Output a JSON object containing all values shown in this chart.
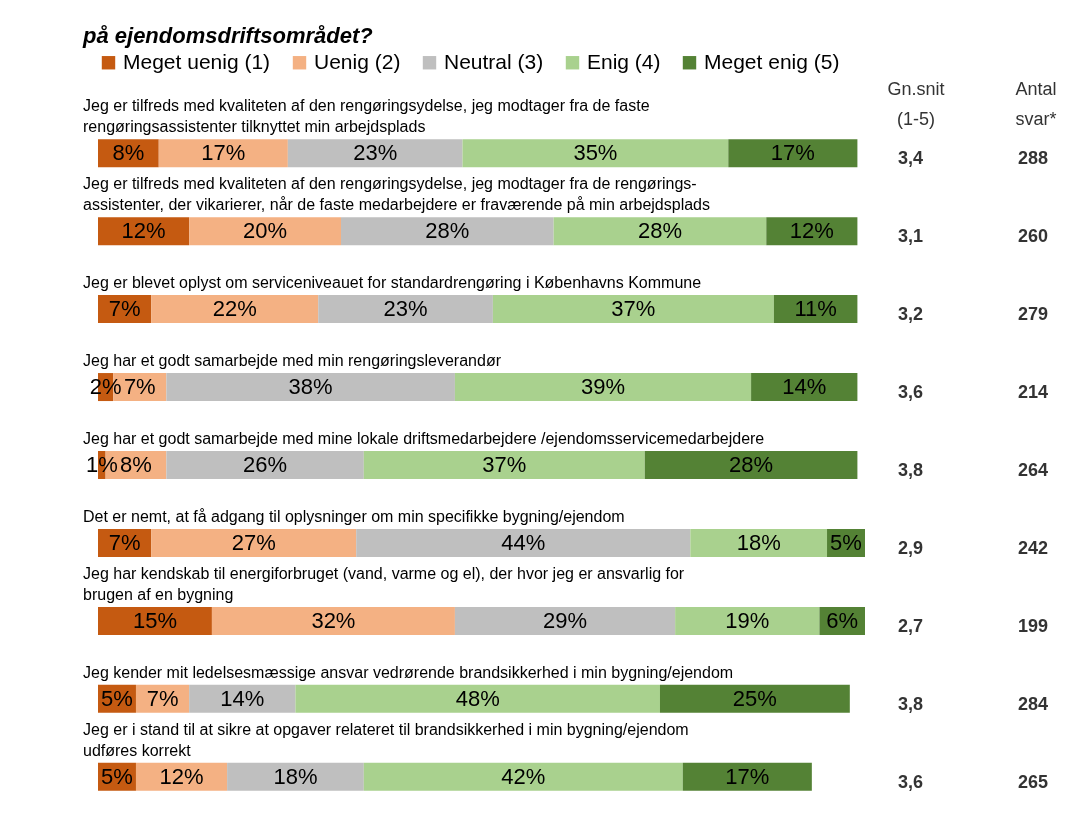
{
  "chart_data": {
    "type": "bar",
    "orientation": "horizontal",
    "stacked": true,
    "legend": "top",
    "xlim": [
      0,
      101
    ],
    "tick_labels": false,
    "title": "på ejendomsdriftsområdet?",
    "categories": [
      "Jeg er tilfreds med kvaliteten af den rengøringsydelse, jeg modtager fra de faste rengøringsassistenter tilknyttet min arbejdsplads",
      "Jeg er tilfreds med kvaliteten af den rengøringsydelse, jeg modtager fra de rengørings-assistenter, der vikarierer, når de faste medarbejdere er fraværende på min arbejdsplads",
      "Jeg er blevet oplyst om serviceniveauet for standardrengøring i Københavns Kommune",
      "Jeg har et godt samarbejde med min rengøringsleverandør",
      "Jeg har et godt samarbejde med mine lokale driftsmedarbejdere /ejendomsservicemedarbejdere",
      "Det er nemt, at få adgang til oplysninger om min specifikke bygning/ejendom",
      "Jeg har kendskab til energiforbruget (vand, varme og el), der hvor jeg er ansvarlig for brugen af en bygning",
      "Jeg kender mit ledelsesmæssige ansvar vedrørende brandsikkerhed i min bygning/ejendom",
      "Jeg er i stand til at sikre at opgaver relateret til brandsikkerhed i min bygning/ejendom udføres korrekt"
    ],
    "series": [
      {
        "name": "Meget uenig (1)",
        "color": "#c55a11",
        "values": [
          8,
          12,
          7,
          2,
          1,
          7,
          15,
          5,
          5
        ],
        "value_labels": [
          "8%",
          "12%",
          "7%",
          "2%",
          "1%",
          "7%",
          "15%",
          "5%",
          "5%"
        ]
      },
      {
        "name": "Uenig (2)",
        "color": "#f4b183",
        "values": [
          17,
          20,
          22,
          7,
          8,
          27,
          32,
          7,
          12
        ],
        "value_labels": [
          "17%",
          "20%",
          "22%",
          "7%",
          "8%",
          "27%",
          "32%",
          "7%",
          "12%"
        ]
      },
      {
        "name": "Neutral (3)",
        "color": "#bfbfbf",
        "values": [
          23,
          28,
          23,
          38,
          26,
          44,
          29,
          14,
          18
        ],
        "value_labels": [
          "23%",
          "28%",
          "23%",
          "38%",
          "26%",
          "44%",
          "29%",
          "14%",
          "18%"
        ]
      },
      {
        "name": "Enig (4)",
        "color": "#a9d18e",
        "values": [
          35,
          28,
          37,
          39,
          37,
          18,
          19,
          48,
          42
        ],
        "value_labels": [
          "35%",
          "28%",
          "37%",
          "39%",
          "37%",
          "18%",
          "19%",
          "48%",
          "42%"
        ]
      },
      {
        "name": "Meget enig (5)",
        "color": "#548235",
        "values": [
          17,
          12,
          11,
          14,
          28,
          5,
          6,
          25,
          17
        ],
        "value_labels": [
          "17%",
          "12%",
          "11%",
          "14%",
          "28%",
          "5%",
          "6%",
          "25%",
          "17%"
        ]
      }
    ],
    "annotations": [
      "Gn.snit (1-5)",
      "Antal svar*",
      "3,4",
      "288",
      "3,1",
      "260",
      "3,2",
      "279",
      "3,6",
      "214",
      "3,8",
      "264",
      "2,9",
      "242",
      "2,7",
      "199",
      "3,8",
      "284",
      "3,6",
      "265"
    ]
  }
}
